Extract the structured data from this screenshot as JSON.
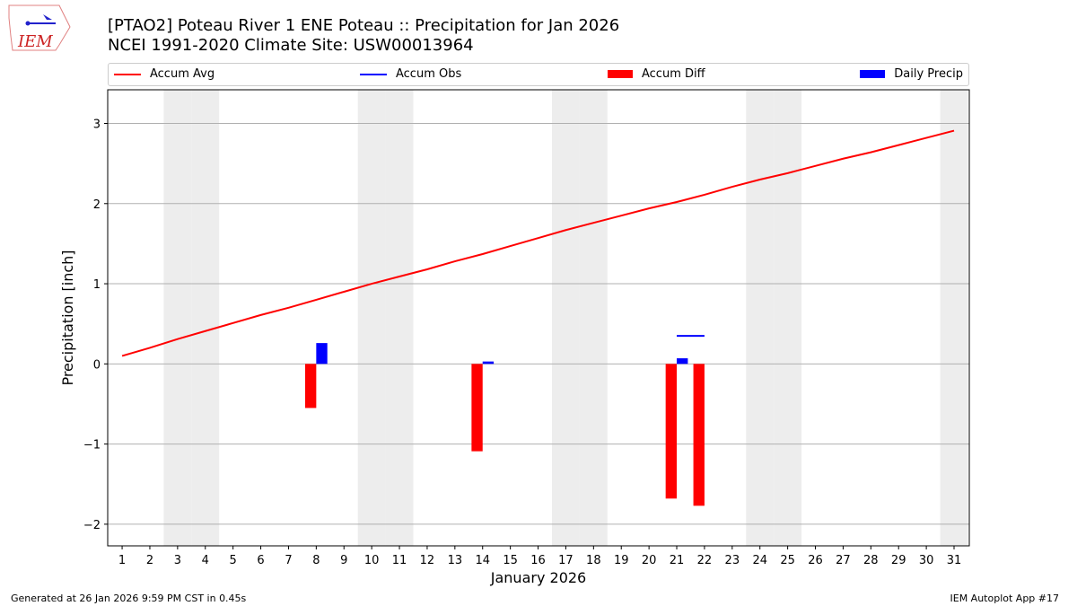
{
  "logo_text": "IEM",
  "title_line1": "[PTAO2] Poteau River 1 ENE Poteau :: Precipitation for Jan 2026",
  "title_line2": "NCEI 1991-2020 Climate Site: USW00013964",
  "footer_left": "Generated at 26 Jan 2026 9:59 PM CST in 0.45s",
  "footer_right": "IEM Autoplot App #17",
  "legend": [
    {
      "label": "Accum Avg",
      "color": "#ff0000",
      "kind": "line"
    },
    {
      "label": "Accum Obs",
      "color": "#0000ff",
      "kind": "line"
    },
    {
      "label": "Accum Diff",
      "color": "#ff0000",
      "kind": "box"
    },
    {
      "label": "Daily Precip",
      "color": "#0000ff",
      "kind": "box"
    }
  ],
  "chart_data": {
    "type": "bar",
    "xlabel": "January 2026",
    "ylabel": "Precipitation [inch]",
    "x": [
      1,
      2,
      3,
      4,
      5,
      6,
      7,
      8,
      9,
      10,
      11,
      12,
      13,
      14,
      15,
      16,
      17,
      18,
      19,
      20,
      21,
      22,
      23,
      24,
      25,
      26,
      27,
      28,
      29,
      30,
      31
    ],
    "xlim": [
      0.48,
      31.55
    ],
    "ylim": [
      -2.27,
      3.42
    ],
    "yticks": [
      -2,
      -1,
      0,
      1,
      2,
      3
    ],
    "ytick_labels": [
      "−2",
      "−1",
      "0",
      "1",
      "2",
      "3"
    ],
    "grid": "horizontal",
    "shaded_days": [
      3,
      4,
      10,
      11,
      17,
      18,
      24,
      25,
      31
    ],
    "series": [
      {
        "name": "Accum Avg",
        "type": "line",
        "color": "#ff0000",
        "x": [
          1,
          2,
          3,
          4,
          5,
          6,
          7,
          8,
          9,
          10,
          11,
          12,
          13,
          14,
          15,
          16,
          17,
          18,
          19,
          20,
          21,
          22,
          23,
          24,
          25,
          26,
          27,
          28,
          29,
          30,
          31
        ],
        "values": [
          0.1,
          0.2,
          0.31,
          0.41,
          0.51,
          0.61,
          0.7,
          0.8,
          0.9,
          1.0,
          1.09,
          1.18,
          1.28,
          1.37,
          1.47,
          1.57,
          1.67,
          1.76,
          1.85,
          1.94,
          2.02,
          2.11,
          2.21,
          2.3,
          2.38,
          2.47,
          2.56,
          2.64,
          2.73,
          2.82,
          2.91
        ]
      },
      {
        "name": "Accum Obs",
        "type": "line",
        "color": "#0000ff",
        "x": [
          21,
          22
        ],
        "values": [
          0.35,
          0.35
        ]
      },
      {
        "name": "Accum Diff",
        "type": "bar",
        "color": "#ff0000",
        "x": [
          8,
          14,
          21,
          22
        ],
        "values": [
          -0.55,
          -1.09,
          -1.68,
          -1.77
        ]
      },
      {
        "name": "Daily Precip",
        "type": "bar",
        "color": "#0000ff",
        "x": [
          8,
          14,
          21
        ],
        "values": [
          0.26,
          0.03,
          0.07
        ]
      }
    ]
  }
}
